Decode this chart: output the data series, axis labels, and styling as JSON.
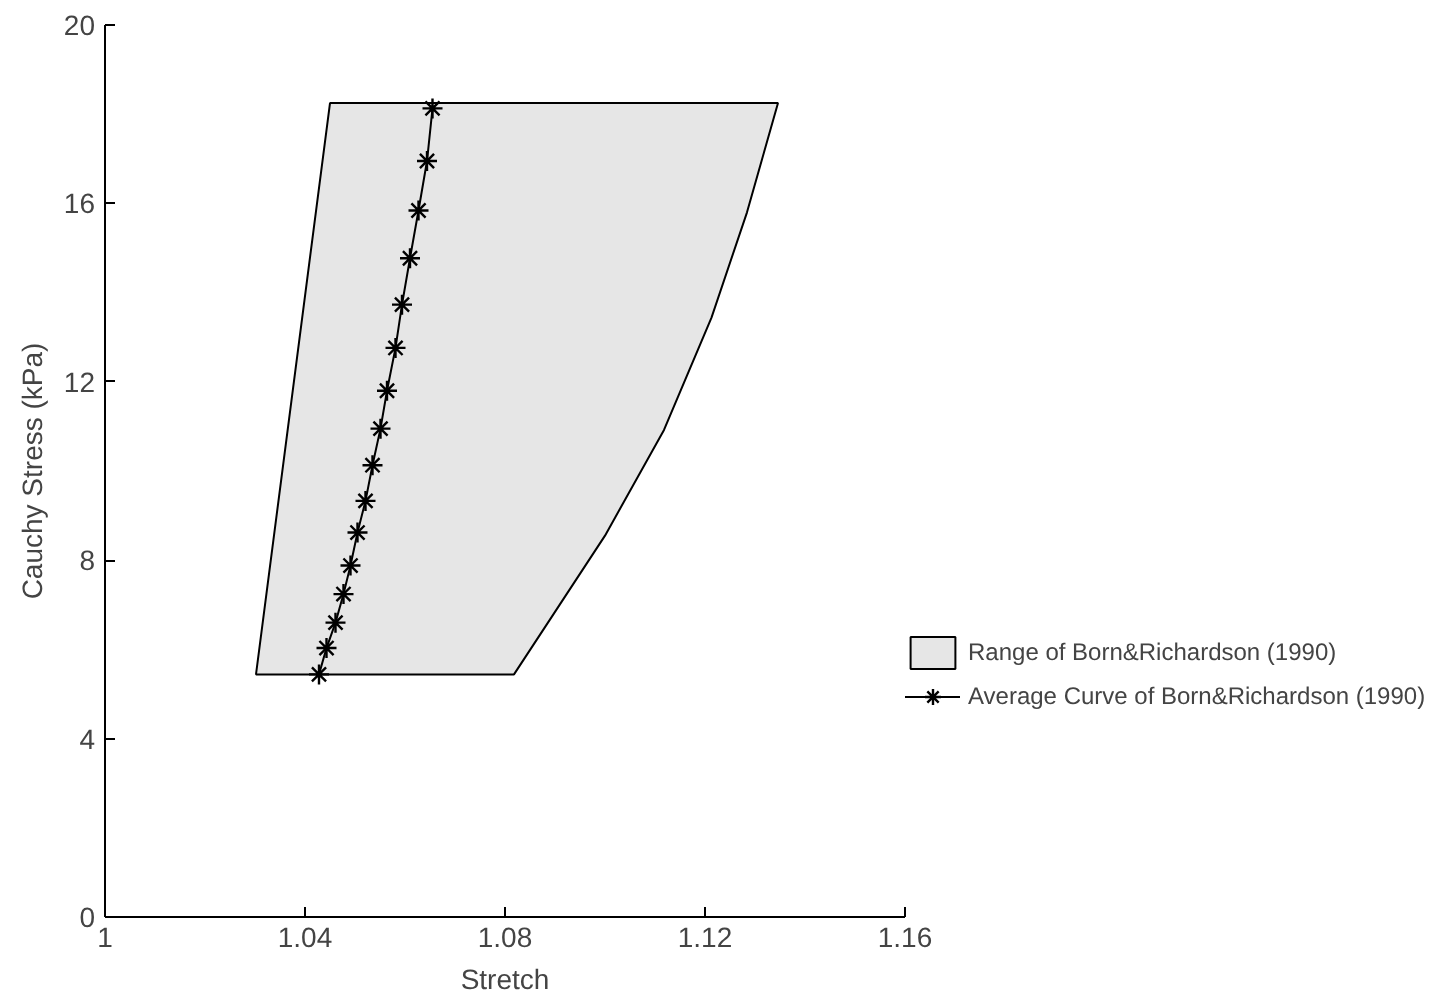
{
  "chart_data": {
    "type": "line",
    "xlabel": "Stretch",
    "ylabel": "Cauchy Stress (kPa)",
    "xlim": [
      1,
      1.16
    ],
    "xticks": [
      1,
      1.04,
      1.08,
      1.12,
      1.16
    ],
    "ylim": [
      0,
      20
    ],
    "yticks": [
      0,
      4,
      8,
      12,
      16,
      20
    ],
    "grid": false,
    "legend": "right",
    "series": [
      {
        "name": "Range of Born&Richardson (1990)",
        "type": "area",
        "color": "#e6e6e6",
        "x": [
          1.0302,
          1.0818,
          1.1,
          1.1118,
          1.1213,
          1.1284,
          1.1346,
          1.045
        ],
        "values": [
          5.44,
          5.44,
          8.55,
          10.92,
          13.44,
          15.8,
          18.25,
          18.25
        ]
      },
      {
        "name": "Average Curve of Born&Richardson (1990)",
        "color": "#000000",
        "marker": "cross",
        "line_style": "solid",
        "x": [
          1.0428,
          1.0443,
          1.0461,
          1.0477,
          1.0491,
          1.0505,
          1.0521,
          1.0535,
          1.0551,
          1.0564,
          1.0581,
          1.0594,
          1.061,
          1.0627,
          1.0644,
          1.0655
        ],
        "values": [
          5.44,
          6.03,
          6.6,
          7.24,
          7.88,
          8.62,
          9.33,
          10.13,
          10.95,
          11.8,
          12.76,
          13.73,
          14.77,
          15.84,
          16.95,
          18.13
        ]
      }
    ]
  }
}
